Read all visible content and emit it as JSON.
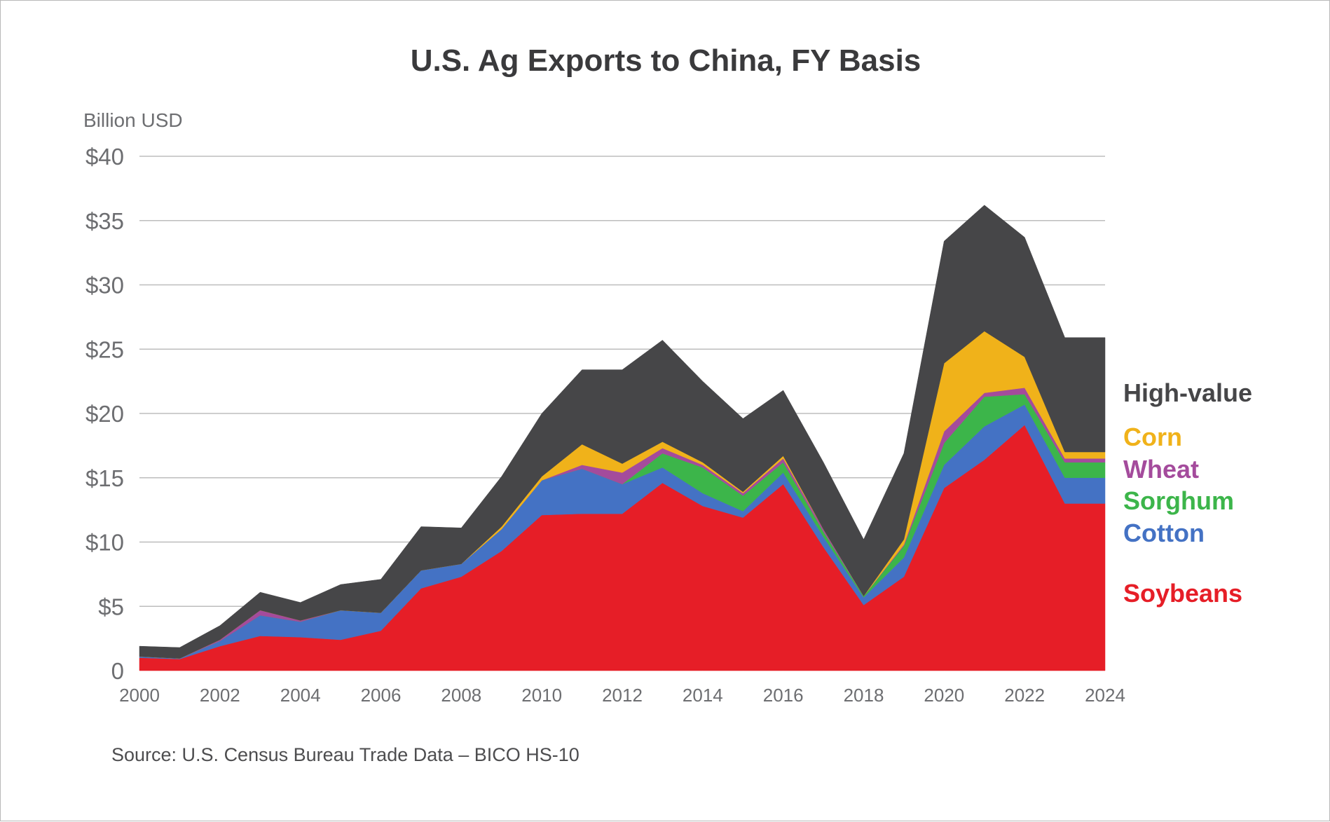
{
  "chart_data": {
    "type": "area",
    "stacked": true,
    "title": "U.S. Ag Exports to China, FY Basis",
    "ylabel": "Billion USD",
    "source": "Source: U.S. Census Bureau Trade Data – BICO HS-10",
    "ylim": [
      0,
      40
    ],
    "y_ticks": [
      0,
      5,
      10,
      15,
      20,
      25,
      30,
      35,
      40
    ],
    "y_tick_labels": [
      "0",
      "$5",
      "$10",
      "$15",
      "$20",
      "$25",
      "$30",
      "$35",
      "$40"
    ],
    "x_ticks": [
      2000,
      2002,
      2004,
      2006,
      2008,
      2010,
      2012,
      2014,
      2016,
      2018,
      2020,
      2022,
      2024
    ],
    "x_tick_labels": [
      "2000",
      "2002",
      "2004",
      "2006",
      "2008",
      "2010",
      "2012",
      "2014",
      "2016",
      "2018",
      "2020",
      "2022",
      "2024"
    ],
    "grid": true,
    "legend_position": "right",
    "x": [
      2000,
      2001,
      2002,
      2003,
      2004,
      2005,
      2006,
      2007,
      2008,
      2009,
      2010,
      2011,
      2012,
      2013,
      2014,
      2015,
      2016,
      2017,
      2018,
      2019,
      2020,
      2021,
      2022,
      2023,
      2024
    ],
    "series": [
      {
        "name": "Soybeans",
        "color": "#e61e27",
        "values": [
          1.0,
          0.9,
          1.9,
          2.7,
          2.6,
          2.4,
          3.1,
          6.4,
          7.3,
          9.3,
          12.1,
          12.2,
          12.2,
          14.6,
          12.8,
          11.9,
          14.5,
          9.6,
          5.1,
          7.3,
          14.2,
          16.4,
          19.1,
          13.0,
          13.0
        ]
      },
      {
        "name": "Cotton",
        "color": "#4472c4",
        "values": [
          0.1,
          0.05,
          0.4,
          1.6,
          1.2,
          2.3,
          1.4,
          1.4,
          1.0,
          1.7,
          2.7,
          3.5,
          2.3,
          1.2,
          1.0,
          0.5,
          0.9,
          0.8,
          0.6,
          1.5,
          1.8,
          2.6,
          1.6,
          2.0,
          2.0
        ]
      },
      {
        "name": "Sorghum",
        "color": "#3cb54a",
        "values": [
          0,
          0,
          0,
          0,
          0,
          0,
          0,
          0,
          0,
          0,
          0,
          0,
          0,
          1.1,
          2.0,
          1.2,
          0.8,
          0.4,
          0.1,
          0.9,
          1.7,
          2.3,
          0.8,
          1.2,
          1.2
        ]
      },
      {
        "name": "Wheat",
        "color": "#a44b9c",
        "values": [
          0,
          0,
          0.1,
          0.4,
          0.1,
          0,
          0,
          0,
          0,
          0,
          0,
          0.3,
          0.9,
          0.4,
          0.2,
          0.2,
          0.3,
          0.2,
          0,
          0.1,
          0.9,
          0.3,
          0.5,
          0.3,
          0.3
        ]
      },
      {
        "name": "Corn",
        "color": "#f0b21a",
        "values": [
          0,
          0,
          0,
          0,
          0,
          0,
          0,
          0,
          0,
          0.2,
          0.3,
          1.6,
          0.7,
          0.5,
          0.2,
          0.1,
          0.2,
          0,
          0,
          0.4,
          5.3,
          4.8,
          2.4,
          0.5,
          0.5
        ]
      },
      {
        "name": "High-value",
        "color": "#464648",
        "values": [
          0.8,
          0.85,
          1.1,
          1.4,
          1.4,
          2.0,
          2.6,
          3.4,
          2.8,
          3.9,
          4.9,
          5.8,
          7.3,
          7.9,
          6.3,
          5.7,
          5.1,
          5.2,
          4.4,
          6.7,
          9.5,
          9.8,
          9.3,
          8.9,
          8.9
        ]
      }
    ]
  }
}
